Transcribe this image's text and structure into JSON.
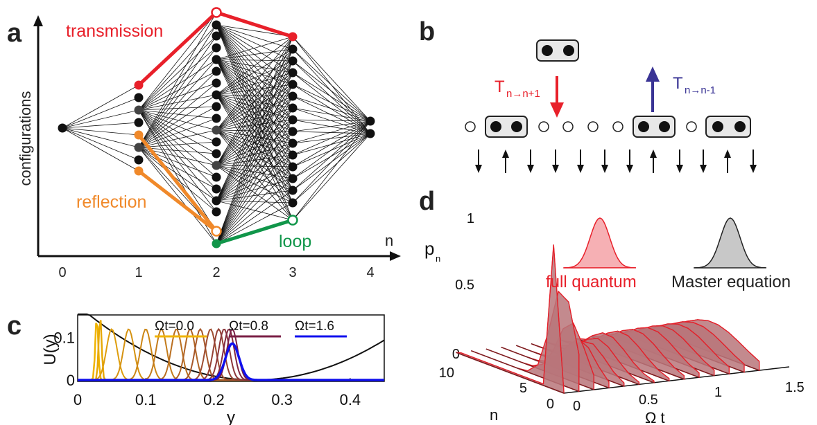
{
  "panels": {
    "a": "a",
    "b": "b",
    "c": "c",
    "d": "d"
  },
  "panel_a": {
    "ylabel": "configurations",
    "xlabel": "n",
    "ticks": [
      "0",
      "1",
      "2",
      "3",
      "4"
    ],
    "transmission": "transmission",
    "reflection": "reflection",
    "loop": "loop",
    "colors": {
      "transmission": "#e8202a",
      "reflection": "#f0892a",
      "loop": "#11964a"
    }
  },
  "panel_b": {
    "t_up": "T",
    "t_up_sub": "n→n+1",
    "t_down": "T",
    "t_down_sub": "n→n-1",
    "spins": [
      "down",
      "up",
      "down",
      "down",
      "down",
      "down",
      "down",
      "up",
      "down",
      "down",
      "up",
      "down"
    ],
    "colors": {
      "t_up": "#e8202a",
      "t_down": "#3a3495"
    }
  },
  "panel_c": {
    "ylabel": "U(y)",
    "xlabel": "y",
    "xticks": [
      "0",
      "0.1",
      "0.2",
      "0.3",
      "0.4"
    ],
    "yticks": [
      "0",
      "0.1"
    ],
    "legend": [
      {
        "label": "Ωt=0.0",
        "color": "#f0b400"
      },
      {
        "label": "Ωt=0.8",
        "color": "#7a1f45"
      },
      {
        "label": "Ωt=1.6",
        "color": "#1010ee"
      }
    ]
  },
  "panel_d": {
    "ylabel": "p",
    "ylabel_sub": "n",
    "zticks": [
      "0",
      "0.5",
      "1"
    ],
    "nticks": [
      "10",
      "5",
      "0"
    ],
    "nlabel": "n",
    "tticks": [
      "0",
      "0.5",
      "1",
      "1.5"
    ],
    "tlabel": "Ω t",
    "legend_quantum": "full quantum",
    "legend_master": "Master equation",
    "colors": {
      "quantum": "#e8202a",
      "master": "#222222"
    }
  }
}
